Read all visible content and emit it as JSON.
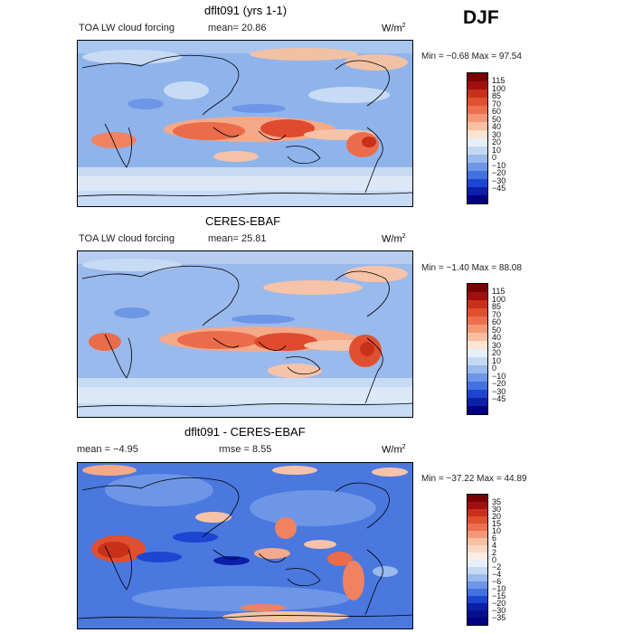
{
  "season": "DJF",
  "panels": [
    {
      "title": "dflt091 (yrs 1-1)",
      "left_text": "TOA LW cloud forcing",
      "stat_text": "mean=  20.86",
      "units": "W/m",
      "units_exp": "2",
      "minmax": "Min =  −0.68 Max =  97.54",
      "colorbar": {
        "labels": [
          "115",
          "100",
          "85",
          "70",
          "60",
          "50",
          "40",
          "30",
          "20",
          "10",
          "0",
          "−10",
          "−20",
          "−30",
          "−45"
        ],
        "colors": [
          "#7a0000",
          "#a01010",
          "#c8301a",
          "#e05030",
          "#ec7050",
          "#f49878",
          "#f8bfa0",
          "#fbe4d2",
          "#e6effa",
          "#c4d8f2",
          "#9ab9ec",
          "#6e96e6",
          "#4372e0",
          "#1e44d2",
          "#0c1fa8",
          "#000080"
        ]
      }
    },
    {
      "title": "CERES-EBAF",
      "left_text": "TOA LW cloud forcing",
      "stat_text": "mean=  25.81",
      "units": "W/m",
      "units_exp": "2",
      "minmax": "Min =  −1.40 Max =  88.08",
      "colorbar": {
        "labels": [
          "115",
          "100",
          "85",
          "70",
          "60",
          "50",
          "40",
          "30",
          "20",
          "10",
          "0",
          "−10",
          "−20",
          "−30",
          "−45"
        ],
        "colors": [
          "#7a0000",
          "#a01010",
          "#c8301a",
          "#e05030",
          "#ec7050",
          "#f49878",
          "#f8bfa0",
          "#fbe4d2",
          "#e6effa",
          "#c4d8f2",
          "#9ab9ec",
          "#6e96e6",
          "#4372e0",
          "#1e44d2",
          "#0c1fa8",
          "#000080"
        ]
      }
    },
    {
      "title": "dflt091 - CERES-EBAF",
      "left_text": "mean =   −4.95",
      "stat_text": "rmse =   8.55",
      "units": "W/m",
      "units_exp": "2",
      "minmax": "Min = −37.22 Max =  44.89",
      "colorbar": {
        "labels": [
          "35",
          "30",
          "20",
          "15",
          "10",
          "6",
          "4",
          "2",
          "0",
          "−2",
          "−4",
          "−6",
          "−10",
          "−15",
          "−20",
          "−30",
          "−35"
        ],
        "colors": [
          "#7a0000",
          "#a01010",
          "#c8301a",
          "#e05030",
          "#ec7050",
          "#f49878",
          "#f8bfa0",
          "#fbd8c4",
          "#fbece4",
          "#e6effa",
          "#c4d8f2",
          "#9ab9ec",
          "#6e96e6",
          "#4372e0",
          "#1e44d2",
          "#0c1fa8",
          "#06108c",
          "#000080"
        ]
      }
    }
  ]
}
